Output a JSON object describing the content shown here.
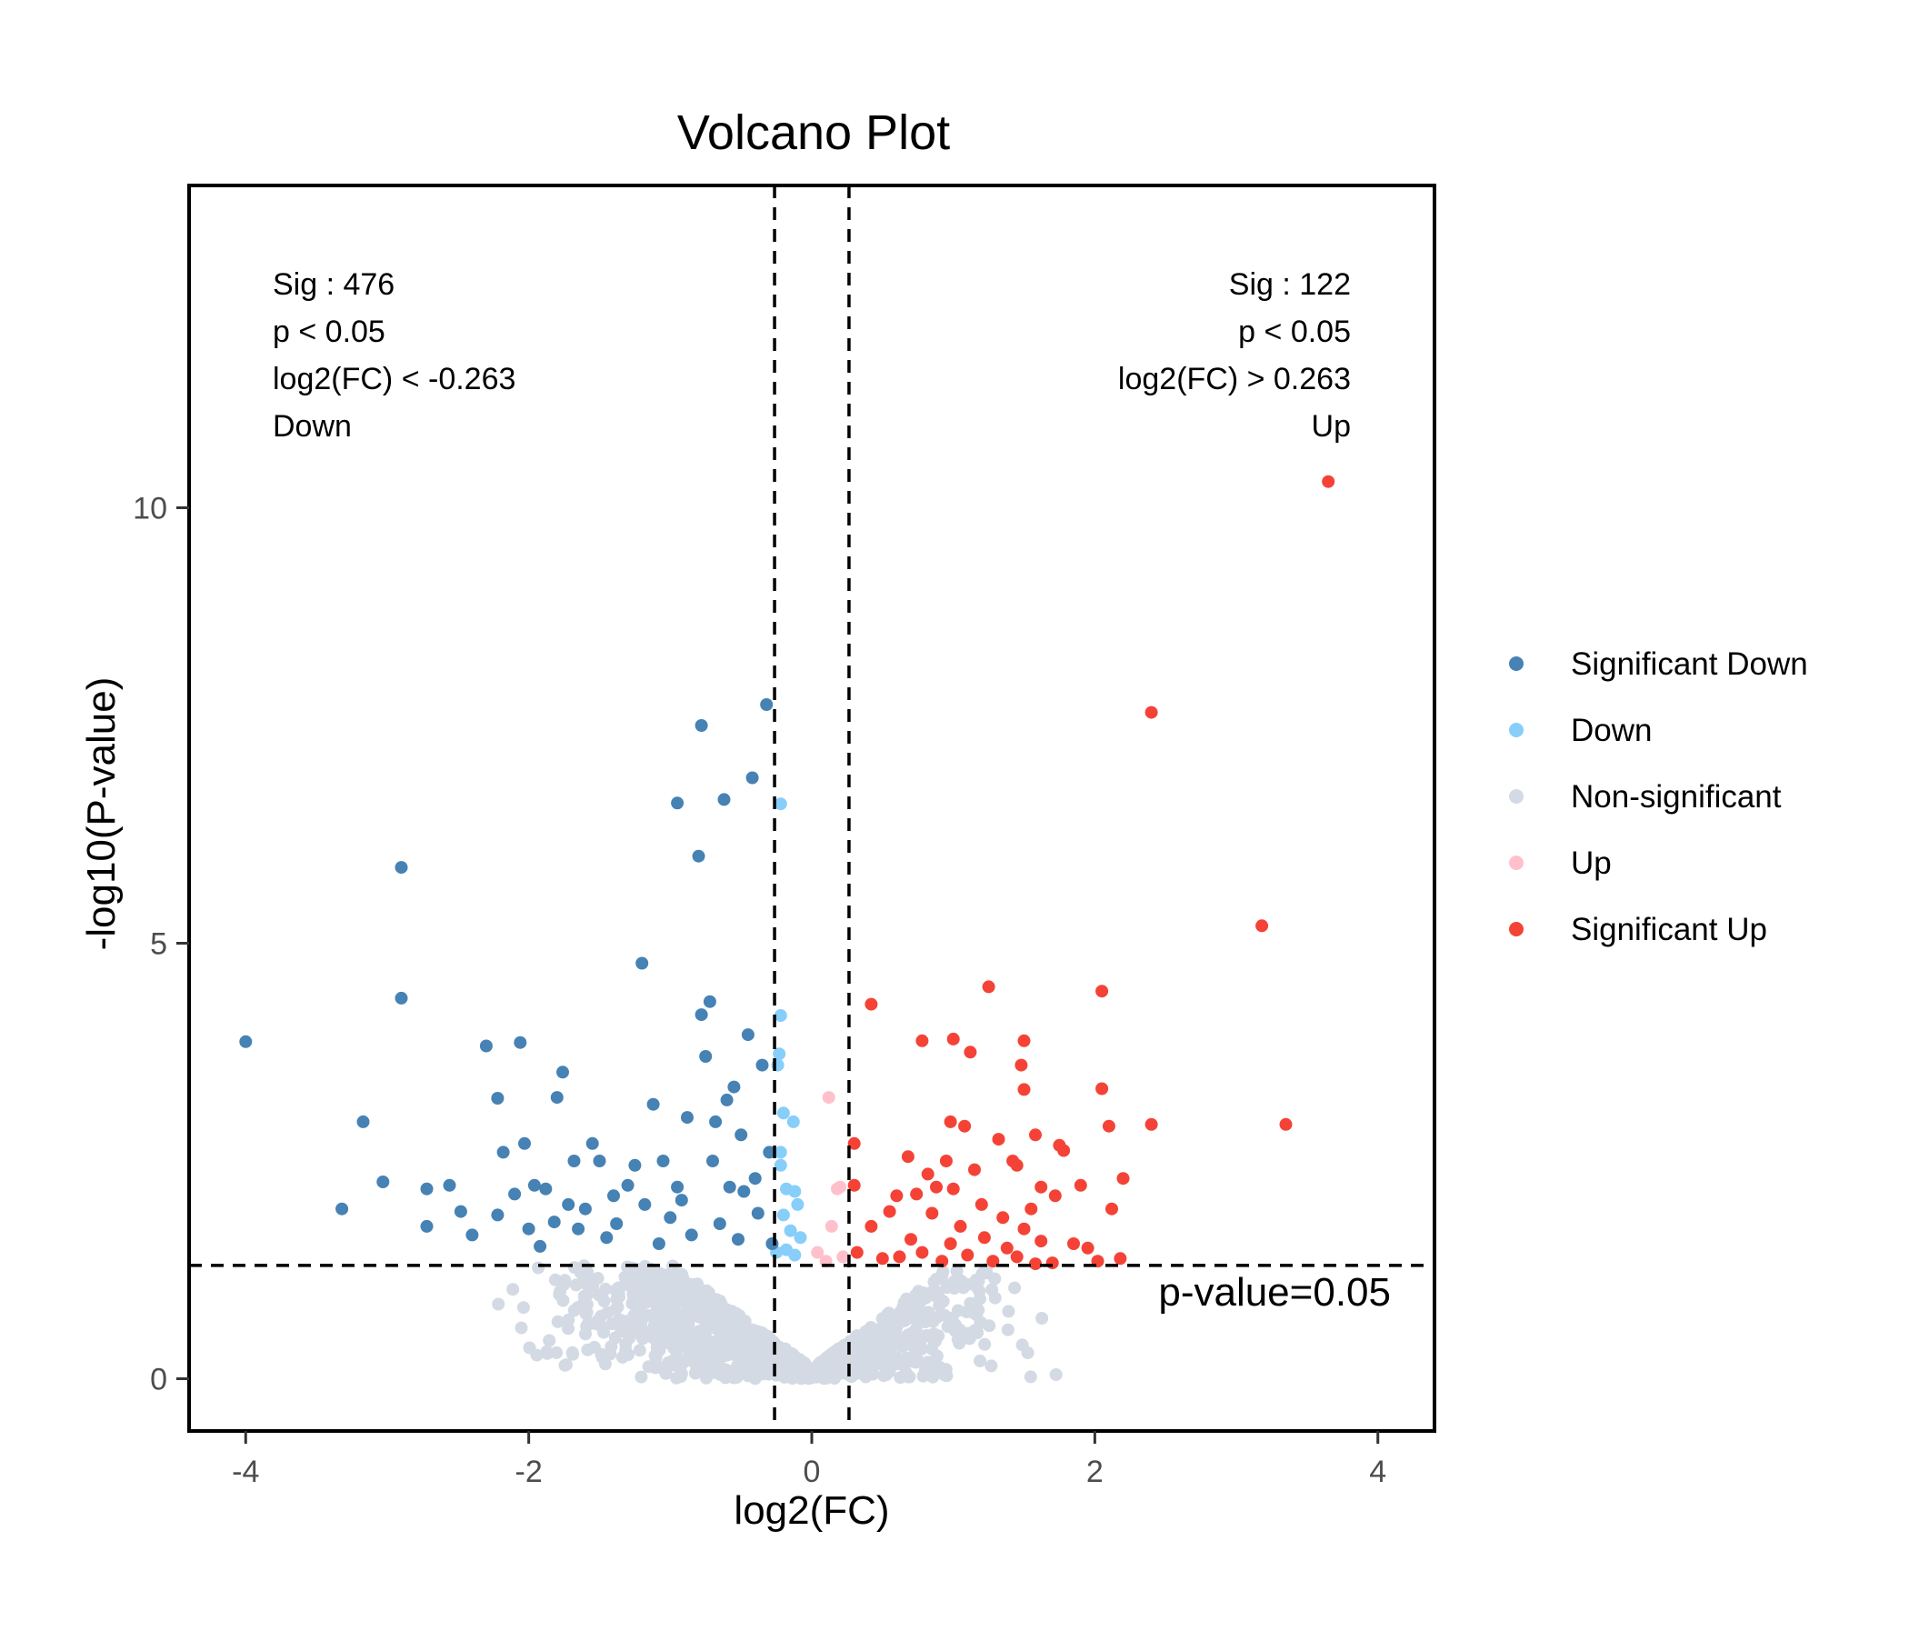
{
  "chart_data": {
    "type": "scatter",
    "title": "Volcano Plot",
    "xlabel": "log2(FC)",
    "ylabel": "-log10(P-value)",
    "xlim": [
      -4.4,
      4.4
    ],
    "ylim": [
      -0.6,
      13.7
    ],
    "x_ticks": [
      -4,
      -2,
      0,
      2,
      4
    ],
    "y_ticks": [
      0,
      5,
      10
    ],
    "grid": false,
    "legend_position": "right",
    "thresholds": {
      "fc_lines": [
        -0.263,
        0.263
      ],
      "p_line": 1.301,
      "p_line_label": "p-value=0.05"
    },
    "annotations": {
      "left": [
        "Sig : 476",
        "p < 0.05",
        "log2(FC) < -0.263",
        "Down"
      ],
      "right": [
        "Sig : 122",
        "p < 0.05",
        "log2(FC) > 0.263",
        "Up"
      ]
    },
    "series": [
      {
        "name": "Significant Down",
        "color": "#4682B4",
        "points": [
          [
            -4.0,
            3.87
          ],
          [
            -3.32,
            1.95
          ],
          [
            -3.17,
            2.95
          ],
          [
            -3.03,
            2.26
          ],
          [
            -2.9,
            5.87
          ],
          [
            -2.9,
            4.37
          ],
          [
            -2.72,
            1.75
          ],
          [
            -2.72,
            2.18
          ],
          [
            -2.56,
            2.22
          ],
          [
            -2.48,
            1.92
          ],
          [
            -2.4,
            1.65
          ],
          [
            -2.3,
            3.82
          ],
          [
            -2.22,
            3.22
          ],
          [
            -2.22,
            1.88
          ],
          [
            -2.18,
            2.6
          ],
          [
            -2.1,
            2.12
          ],
          [
            -2.06,
            3.86
          ],
          [
            -2.03,
            2.7
          ],
          [
            -2.0,
            1.72
          ],
          [
            -1.96,
            2.22
          ],
          [
            -1.92,
            1.52
          ],
          [
            -1.88,
            2.18
          ],
          [
            -1.82,
            1.8
          ],
          [
            -1.8,
            3.23
          ],
          [
            -1.76,
            3.52
          ],
          [
            -1.72,
            2.0
          ],
          [
            -1.68,
            2.5
          ],
          [
            -1.6,
            1.95
          ],
          [
            -1.5,
            2.5
          ],
          [
            -1.45,
            1.62
          ],
          [
            -1.4,
            2.1
          ],
          [
            -1.38,
            1.78
          ],
          [
            -1.3,
            2.22
          ],
          [
            -1.2,
            4.77
          ],
          [
            -1.18,
            2.0
          ],
          [
            -1.12,
            3.15
          ],
          [
            -1.08,
            1.55
          ],
          [
            -1.05,
            2.5
          ],
          [
            -1.0,
            1.85
          ],
          [
            -0.95,
            6.61
          ],
          [
            -0.92,
            2.05
          ],
          [
            -0.88,
            3.0
          ],
          [
            -0.85,
            1.65
          ],
          [
            -0.8,
            6.0
          ],
          [
            -0.78,
            7.5
          ],
          [
            -0.78,
            4.18
          ],
          [
            -0.75,
            3.7
          ],
          [
            -0.72,
            4.33
          ],
          [
            -0.7,
            2.5
          ],
          [
            -0.65,
            1.78
          ],
          [
            -0.62,
            6.65
          ],
          [
            -0.6,
            3.2
          ],
          [
            -0.58,
            2.2
          ],
          [
            -0.55,
            3.35
          ],
          [
            -0.52,
            1.6
          ],
          [
            -0.5,
            2.8
          ],
          [
            -0.45,
            3.95
          ],
          [
            -0.42,
            6.9
          ],
          [
            -0.4,
            2.3
          ],
          [
            -0.38,
            1.9
          ],
          [
            -0.32,
            7.74
          ],
          [
            -0.3,
            2.6
          ],
          [
            -0.28,
            1.55
          ],
          [
            -1.55,
            2.7
          ],
          [
            -0.95,
            2.2
          ],
          [
            -0.68,
            2.95
          ],
          [
            -1.25,
            2.45
          ],
          [
            -0.48,
            2.15
          ],
          [
            -1.65,
            1.72
          ],
          [
            -0.35,
            3.6
          ]
        ]
      },
      {
        "name": "Down",
        "color": "#87CEFA",
        "points": [
          [
            -0.22,
            6.6
          ],
          [
            -0.22,
            4.17
          ],
          [
            -0.23,
            3.73
          ],
          [
            -0.24,
            3.6
          ],
          [
            -0.2,
            3.05
          ],
          [
            -0.13,
            2.95
          ],
          [
            -0.22,
            2.6
          ],
          [
            -0.22,
            2.45
          ],
          [
            -0.18,
            2.18
          ],
          [
            -0.12,
            2.15
          ],
          [
            -0.1,
            2.0
          ],
          [
            -0.2,
            1.88
          ],
          [
            -0.15,
            1.7
          ],
          [
            -0.08,
            1.62
          ],
          [
            -0.18,
            1.48
          ],
          [
            -0.25,
            1.45
          ],
          [
            -0.12,
            1.42
          ]
        ]
      },
      {
        "name": "Non-significant",
        "color": "#D3DAE3",
        "cloud": {
          "count": 1100,
          "x_min": -2.45,
          "x_max": 1.9
        }
      },
      {
        "name": "Up",
        "color": "#FFC0CB",
        "points": [
          [
            0.12,
            3.23
          ],
          [
            0.18,
            2.18
          ],
          [
            0.2,
            2.2
          ],
          [
            0.14,
            1.75
          ],
          [
            0.04,
            1.45
          ],
          [
            0.22,
            1.4
          ],
          [
            0.1,
            1.35
          ]
        ]
      },
      {
        "name": "Significant Up",
        "color": "#F44336",
        "points": [
          [
            3.65,
            10.3
          ],
          [
            2.4,
            7.65
          ],
          [
            3.18,
            5.2
          ],
          [
            3.35,
            2.92
          ],
          [
            2.05,
            4.45
          ],
          [
            1.25,
            4.5
          ],
          [
            0.42,
            4.3
          ],
          [
            0.78,
            3.88
          ],
          [
            1.0,
            3.9
          ],
          [
            1.12,
            3.75
          ],
          [
            1.48,
            3.6
          ],
          [
            1.5,
            3.88
          ],
          [
            2.05,
            3.33
          ],
          [
            2.1,
            2.9
          ],
          [
            2.4,
            2.92
          ],
          [
            1.5,
            3.32
          ],
          [
            0.98,
            2.95
          ],
          [
            1.08,
            2.9
          ],
          [
            1.32,
            2.75
          ],
          [
            1.58,
            2.8
          ],
          [
            1.75,
            2.68
          ],
          [
            1.78,
            2.62
          ],
          [
            0.3,
            2.7
          ],
          [
            0.3,
            2.22
          ],
          [
            0.68,
            2.55
          ],
          [
            0.82,
            2.35
          ],
          [
            0.95,
            2.5
          ],
          [
            1.15,
            2.4
          ],
          [
            1.42,
            2.5
          ],
          [
            1.45,
            2.45
          ],
          [
            1.62,
            2.2
          ],
          [
            1.9,
            2.22
          ],
          [
            2.2,
            2.3
          ],
          [
            0.6,
            2.1
          ],
          [
            0.74,
            2.12
          ],
          [
            0.88,
            2.2
          ],
          [
            1.0,
            2.18
          ],
          [
            1.2,
            2.0
          ],
          [
            1.35,
            1.85
          ],
          [
            1.55,
            1.95
          ],
          [
            1.72,
            2.1
          ],
          [
            2.12,
            1.95
          ],
          [
            0.42,
            1.75
          ],
          [
            0.55,
            1.92
          ],
          [
            0.7,
            1.6
          ],
          [
            0.85,
            1.9
          ],
          [
            0.98,
            1.55
          ],
          [
            1.05,
            1.75
          ],
          [
            1.22,
            1.62
          ],
          [
            1.38,
            1.5
          ],
          [
            1.5,
            1.72
          ],
          [
            1.62,
            1.58
          ],
          [
            1.85,
            1.55
          ],
          [
            1.95,
            1.5
          ],
          [
            2.18,
            1.38
          ],
          [
            0.32,
            1.45
          ],
          [
            0.5,
            1.38
          ],
          [
            0.62,
            1.4
          ],
          [
            0.78,
            1.45
          ],
          [
            0.92,
            1.35
          ],
          [
            1.1,
            1.42
          ],
          [
            1.28,
            1.35
          ],
          [
            1.45,
            1.4
          ],
          [
            1.7,
            1.33
          ],
          [
            1.58,
            1.32
          ],
          [
            2.02,
            1.35
          ]
        ]
      }
    ]
  }
}
